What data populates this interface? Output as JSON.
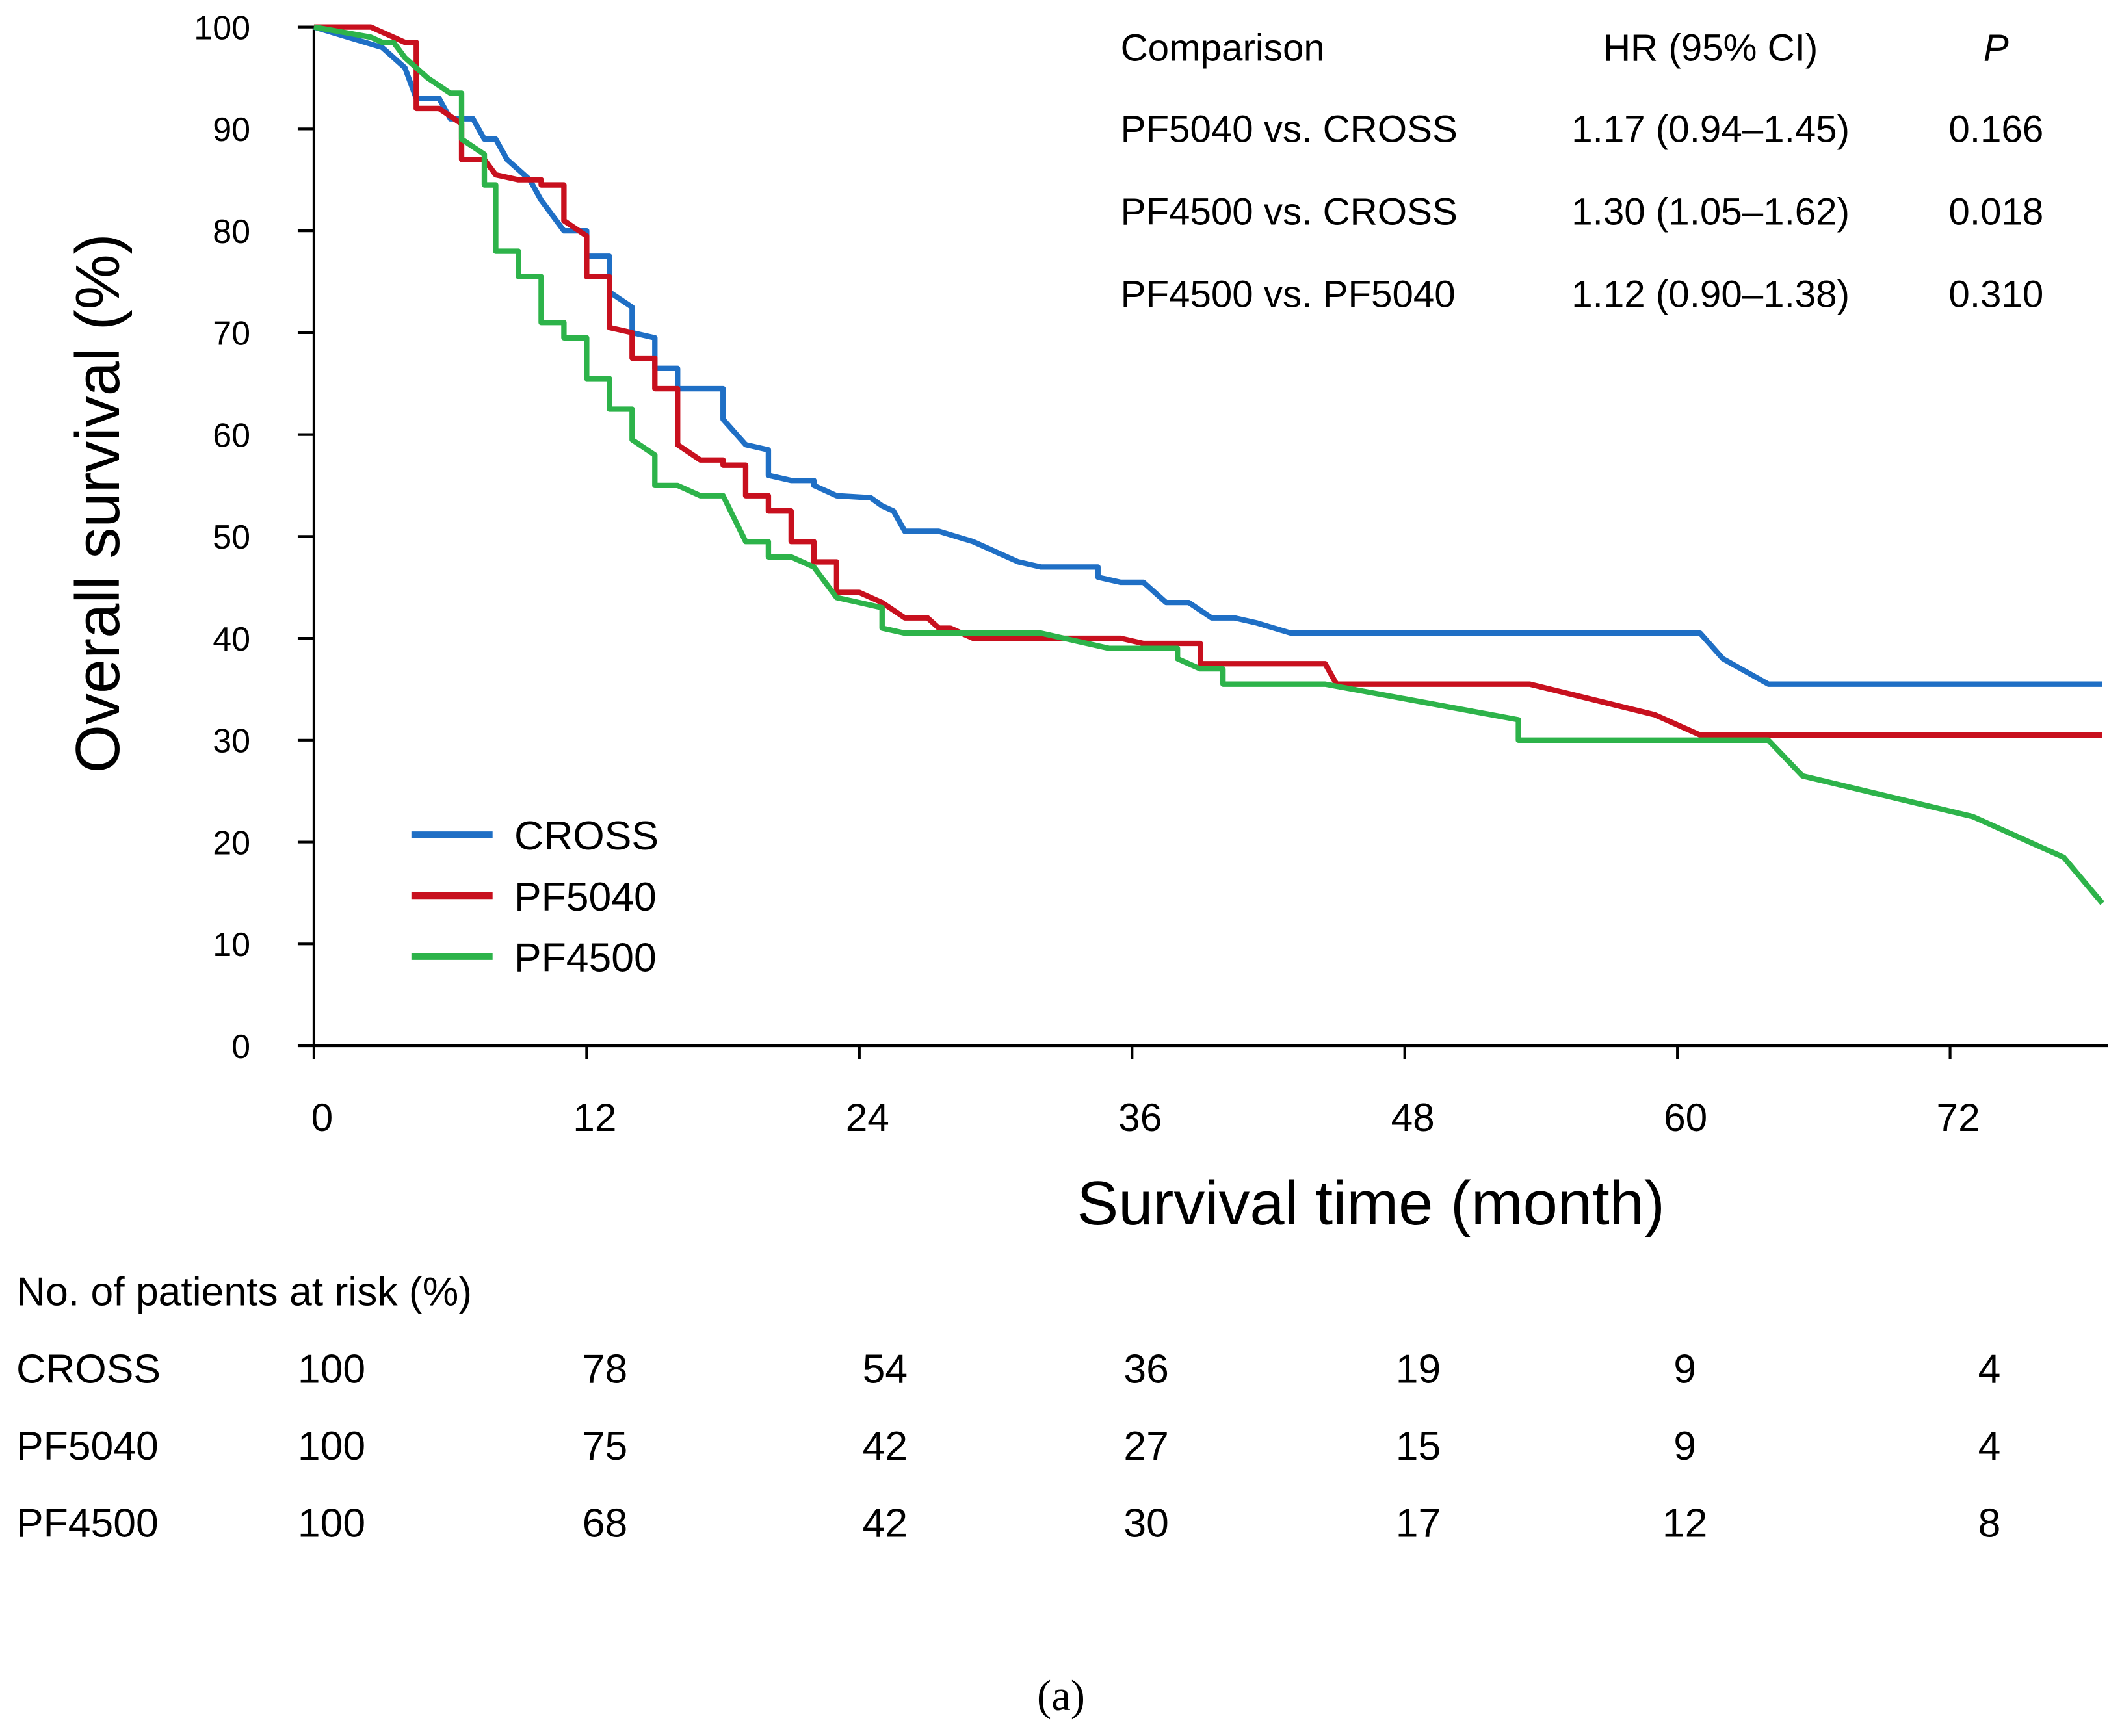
{
  "chart_data": {
    "type": "line",
    "step": true,
    "xlabel": "Survival time (month)",
    "ylabel": "Overall survival (%)",
    "xlim": [
      0,
      78.7
    ],
    "ylim": [
      0,
      100
    ],
    "xticks": [
      0,
      12,
      24,
      36,
      48,
      60,
      72
    ],
    "yticks": [
      0,
      10,
      20,
      30,
      40,
      50,
      60,
      70,
      80,
      90,
      100
    ],
    "grid": false,
    "legend_position": "bottom-left",
    "series": [
      {
        "name": "CROSS",
        "color": "#1f6fc5",
        "points": [
          [
            0,
            100
          ],
          [
            3,
            98
          ],
          [
            4,
            96
          ],
          [
            4.5,
            93
          ],
          [
            5.5,
            93
          ],
          [
            6,
            91
          ],
          [
            7,
            91
          ],
          [
            7.5,
            89
          ],
          [
            8,
            89
          ],
          [
            8.5,
            87
          ],
          [
            9.5,
            85
          ],
          [
            10,
            83
          ],
          [
            11,
            80
          ],
          [
            12,
            80
          ],
          [
            12,
            77.5
          ],
          [
            13,
            77.5
          ],
          [
            13,
            74
          ],
          [
            14,
            72.5
          ],
          [
            14,
            70
          ],
          [
            15,
            69.5
          ],
          [
            15,
            66.5
          ],
          [
            16,
            66.5
          ],
          [
            16,
            64.5
          ],
          [
            18,
            64.5
          ],
          [
            18,
            61.5
          ],
          [
            19,
            59
          ],
          [
            20,
            58.5
          ],
          [
            20,
            56
          ],
          [
            21,
            55.5
          ],
          [
            22,
            55.5
          ],
          [
            22,
            55
          ],
          [
            23,
            54
          ],
          [
            24.5,
            53.8
          ],
          [
            25,
            53
          ],
          [
            25.5,
            52.5
          ],
          [
            26,
            50.5
          ],
          [
            27.5,
            50.5
          ],
          [
            29,
            49.5
          ],
          [
            31,
            47.5
          ],
          [
            32,
            47
          ],
          [
            34.5,
            47
          ],
          [
            34.5,
            46
          ],
          [
            35.5,
            45.5
          ],
          [
            36.5,
            45.5
          ],
          [
            37.5,
            43.5
          ],
          [
            38.5,
            43.5
          ],
          [
            39.5,
            42
          ],
          [
            40.5,
            42
          ],
          [
            41.5,
            41.5
          ],
          [
            43,
            40.5
          ],
          [
            61,
            40.5
          ],
          [
            62,
            38
          ],
          [
            64,
            35.5
          ],
          [
            78.7,
            35.5
          ]
        ]
      },
      {
        "name": "PF5040",
        "color": "#c8101e",
        "points": [
          [
            0,
            100
          ],
          [
            2.5,
            100
          ],
          [
            4,
            98.5
          ],
          [
            4.5,
            98.5
          ],
          [
            4.5,
            92
          ],
          [
            5.5,
            92
          ],
          [
            6.5,
            90.5
          ],
          [
            6.5,
            87
          ],
          [
            7.5,
            87
          ],
          [
            8,
            85.5
          ],
          [
            9,
            85
          ],
          [
            10,
            85
          ],
          [
            10,
            84.5
          ],
          [
            11,
            84.5
          ],
          [
            11,
            81
          ],
          [
            12,
            79.5
          ],
          [
            12,
            75.5
          ],
          [
            13,
            75.5
          ],
          [
            13,
            70.5
          ],
          [
            14,
            70
          ],
          [
            14,
            67.5
          ],
          [
            15,
            67.5
          ],
          [
            15,
            64.5
          ],
          [
            16,
            64.5
          ],
          [
            16,
            59
          ],
          [
            17,
            57.5
          ],
          [
            18,
            57.5
          ],
          [
            18,
            57
          ],
          [
            19,
            57
          ],
          [
            19,
            54
          ],
          [
            20,
            54
          ],
          [
            20,
            52.5
          ],
          [
            21,
            52.5
          ],
          [
            21,
            49.5
          ],
          [
            22,
            49.5
          ],
          [
            22,
            47.5
          ],
          [
            23,
            47.5
          ],
          [
            23,
            44.5
          ],
          [
            24,
            44.5
          ],
          [
            25,
            43.5
          ],
          [
            26,
            42
          ],
          [
            27,
            42
          ],
          [
            27.5,
            41
          ],
          [
            28,
            41
          ],
          [
            29,
            40
          ],
          [
            35.5,
            40
          ],
          [
            36.5,
            39.5
          ],
          [
            39,
            39.5
          ],
          [
            39,
            37.5
          ],
          [
            44.5,
            37.5
          ],
          [
            45,
            35.5
          ],
          [
            53.5,
            35.5
          ],
          [
            59,
            32.5
          ],
          [
            61,
            30.5
          ],
          [
            78.7,
            30.5
          ]
        ]
      },
      {
        "name": "PF4500",
        "color": "#2db34a",
        "points": [
          [
            0,
            100
          ],
          [
            2.5,
            99
          ],
          [
            3,
            98.5
          ],
          [
            3.5,
            98.5
          ],
          [
            4,
            97
          ],
          [
            5,
            95
          ],
          [
            6,
            93.5
          ],
          [
            6.5,
            93.5
          ],
          [
            6.5,
            89
          ],
          [
            7.5,
            87.5
          ],
          [
            7.5,
            84.5
          ],
          [
            8,
            84.5
          ],
          [
            8,
            78
          ],
          [
            9,
            78
          ],
          [
            9,
            75.5
          ],
          [
            10,
            75.5
          ],
          [
            10,
            71
          ],
          [
            11,
            71
          ],
          [
            11,
            69.5
          ],
          [
            12,
            69.5
          ],
          [
            12,
            65.5
          ],
          [
            13,
            65.5
          ],
          [
            13,
            62.5
          ],
          [
            14,
            62.5
          ],
          [
            14,
            59.5
          ],
          [
            15,
            58
          ],
          [
            15,
            55
          ],
          [
            16,
            55
          ],
          [
            17,
            54
          ],
          [
            18,
            54
          ],
          [
            19,
            49.5
          ],
          [
            20,
            49.5
          ],
          [
            20,
            48
          ],
          [
            21,
            48
          ],
          [
            22,
            47
          ],
          [
            23,
            44
          ],
          [
            24,
            43.5
          ],
          [
            25,
            43
          ],
          [
            25,
            41
          ],
          [
            26,
            40.5
          ],
          [
            32,
            40.5
          ],
          [
            35,
            39
          ],
          [
            38,
            39
          ],
          [
            38,
            38
          ],
          [
            39,
            37
          ],
          [
            40,
            37
          ],
          [
            40,
            35.5
          ],
          [
            44.5,
            35.5
          ],
          [
            53,
            32
          ],
          [
            53,
            30
          ],
          [
            64,
            30
          ],
          [
            65.5,
            26.5
          ],
          [
            73,
            22.5
          ],
          [
            77,
            18.5
          ],
          [
            78.7,
            14
          ]
        ]
      }
    ]
  },
  "hr_table": {
    "headers": [
      "Comparison",
      "HR (95% CI)",
      "P"
    ],
    "rows": [
      [
        "PF5040 vs. CROSS",
        "1.17 (0.94–1.45)",
        "0.166"
      ],
      [
        "PF4500 vs. CROSS",
        "1.30 (1.05–1.62)",
        "0.018"
      ],
      [
        "PF4500 vs. PF5040",
        "1.12 (0.90–1.38)",
        "0.310"
      ]
    ]
  },
  "risk_table": {
    "title": "No. of patients at risk (%)",
    "rows": [
      {
        "name": "CROSS",
        "values": [
          "100",
          "78",
          "54",
          "36",
          "19",
          "9",
          "4"
        ]
      },
      {
        "name": "PF5040",
        "values": [
          "100",
          "75",
          "42",
          "27",
          "15",
          "9",
          "4"
        ]
      },
      {
        "name": "PF4500",
        "values": [
          "100",
          "68",
          "42",
          "30",
          "17",
          "12",
          "8"
        ]
      }
    ]
  },
  "caption": "(a)"
}
